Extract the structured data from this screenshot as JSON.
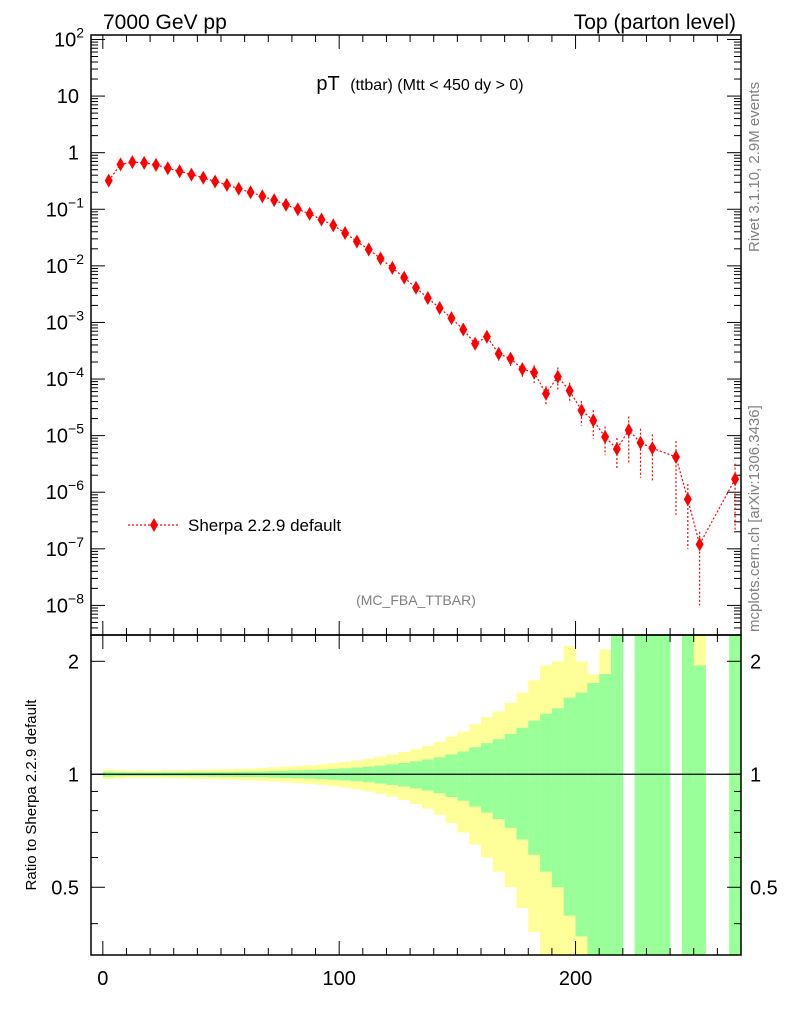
{
  "header": {
    "left": "7000 GeV pp",
    "right": "Top (parton level)"
  },
  "side": {
    "rivet": "Rivet 3.1.10,  2.9M events",
    "mcplots": "mcplots.cern.ch [arXiv:1306.3436]"
  },
  "chart_data": [
    {
      "type": "scatter",
      "title_main": "pT",
      "title_sub": "(ttbar) (Mtt < 450 dy > 0)",
      "analysis": "(MC_FBA_TTBAR)",
      "yscale": "log",
      "xlim": [
        -5,
        270
      ],
      "ylim": [
        3e-09,
        120
      ],
      "yticks": [
        {
          "v": 1e-08,
          "base": "10",
          "exp": "−8"
        },
        {
          "v": 1e-07,
          "base": "10",
          "exp": "−7"
        },
        {
          "v": 1e-06,
          "base": "10",
          "exp": "−6"
        },
        {
          "v": 1e-05,
          "base": "10",
          "exp": "−5"
        },
        {
          "v": 0.0001,
          "base": "10",
          "exp": "−4"
        },
        {
          "v": 0.001,
          "base": "10",
          "exp": "−3"
        },
        {
          "v": 0.01,
          "base": "10",
          "exp": "−2"
        },
        {
          "v": 0.1,
          "base": "10",
          "exp": "−1"
        },
        {
          "v": 1,
          "base": "1",
          "exp": ""
        },
        {
          "v": 10,
          "base": "10",
          "exp": ""
        },
        {
          "v": 100,
          "base": "10",
          "exp": "2"
        }
      ],
      "legend": {
        "label": "Sherpa 2.2.9 default",
        "placement": "bottom-left"
      },
      "series": [
        {
          "name": "Sherpa 2.2.9 default",
          "color": "#ff0000",
          "x": [
            2.5,
            7.5,
            12.5,
            17.5,
            22.5,
            27.5,
            32.5,
            37.5,
            42.5,
            47.5,
            52.5,
            57.5,
            62.5,
            67.5,
            72.5,
            77.5,
            82.5,
            87.5,
            92.5,
            97.5,
            102.5,
            107.5,
            112.5,
            117.5,
            122.5,
            127.5,
            132.5,
            137.5,
            142.5,
            147.5,
            152.5,
            157.5,
            162.5,
            167.5,
            172.5,
            177.5,
            182.5,
            187.5,
            192.5,
            197.5,
            202.5,
            207.5,
            212.5,
            217.5,
            222.5,
            227.5,
            232.5,
            242.5,
            247.5,
            252.5,
            267.5
          ],
          "y": [
            0.32,
            0.62,
            0.68,
            0.66,
            0.61,
            0.53,
            0.47,
            0.41,
            0.36,
            0.31,
            0.27,
            0.23,
            0.2,
            0.17,
            0.145,
            0.12,
            0.1,
            0.083,
            0.066,
            0.052,
            0.038,
            0.027,
            0.0195,
            0.0135,
            0.0092,
            0.0062,
            0.0041,
            0.0027,
            0.0018,
            0.00119,
            0.00075,
            0.00042,
            0.00056,
            0.00028,
            0.00023,
            0.00015,
            0.00013,
            5.5e-05,
            0.00011,
            6.2e-05,
            2.8e-05,
            1.85e-05,
            9.5e-06,
            5.8e-06,
            1.25e-05,
            7.5e-06,
            6e-06,
            4.2e-06,
            7.5e-07,
            1.2e-07,
            1.7e-06
          ],
          "err_lo": [
            0.3,
            0.59,
            0.655,
            0.635,
            0.585,
            0.51,
            0.45,
            0.39,
            0.345,
            0.295,
            0.257,
            0.218,
            0.19,
            0.161,
            0.137,
            0.113,
            0.094,
            0.078,
            0.061,
            0.048,
            0.035,
            0.0248,
            0.0177,
            0.0121,
            0.0081,
            0.0054,
            0.0035,
            0.0023,
            0.00152,
            0.001,
            0.00061,
            0.00034,
            0.00044,
            0.00021,
            0.00017,
            0.00011,
            8.5e-05,
            3.5e-05,
            6e-05,
            3.8e-05,
            1.5e-05,
            8.8e-06,
            4.5e-06,
            2.5e-06,
            3.2e-06,
            1.8e-06,
            1.5e-06,
            4e-07,
            1e-07,
            1e-08,
            2e-07
          ],
          "err_hi": [
            0.34,
            0.65,
            0.705,
            0.685,
            0.635,
            0.55,
            0.49,
            0.43,
            0.375,
            0.325,
            0.283,
            0.242,
            0.21,
            0.179,
            0.153,
            0.127,
            0.106,
            0.088,
            0.071,
            0.056,
            0.041,
            0.0292,
            0.0213,
            0.0149,
            0.0103,
            0.007,
            0.0047,
            0.0031,
            0.00208,
            0.00138,
            0.00089,
            0.0005,
            0.00068,
            0.00035,
            0.00029,
            0.00019,
            0.000175,
            7.5e-05,
            0.00016,
            8.6e-05,
            4.1e-05,
            2.82e-05,
            1.45e-05,
            9.1e-06,
            2.18e-05,
            1.32e-05,
            1.05e-05,
            8e-06,
            1.4e-06,
            2e-07,
            3.2e-06
          ]
        }
      ]
    },
    {
      "type": "area",
      "ylabel": "Ratio to Sherpa 2.2.9 default",
      "yscale": "log",
      "xlim": [
        -5,
        270
      ],
      "ylim": [
        0.33,
        2.35
      ],
      "yticks": [
        0.5,
        1,
        2
      ],
      "xticks": [
        0,
        100,
        200
      ],
      "bin_edges": [
        0,
        5,
        10,
        15,
        20,
        25,
        30,
        35,
        40,
        45,
        50,
        55,
        60,
        65,
        70,
        75,
        80,
        85,
        90,
        95,
        100,
        105,
        110,
        115,
        120,
        125,
        130,
        135,
        140,
        145,
        150,
        155,
        160,
        165,
        170,
        175,
        180,
        185,
        190,
        195,
        200,
        205,
        210,
        215,
        220,
        225,
        230,
        240,
        245,
        250,
        255,
        265,
        270
      ],
      "green_hi": [
        1.015,
        1.012,
        1.011,
        1.011,
        1.011,
        1.012,
        1.012,
        1.013,
        1.013,
        1.014,
        1.015,
        1.016,
        1.017,
        1.018,
        1.02,
        1.022,
        1.024,
        1.026,
        1.029,
        1.033,
        1.037,
        1.042,
        1.048,
        1.055,
        1.063,
        1.072,
        1.083,
        1.095,
        1.11,
        1.13,
        1.15,
        1.18,
        1.21,
        1.24,
        1.28,
        1.33,
        1.39,
        1.45,
        1.5,
        1.6,
        1.65,
        1.75,
        1.85,
        2.35,
        0,
        2.35,
        2.35,
        0,
        2.35,
        1.95,
        0,
        2.35,
        2.0
      ],
      "green_lo": [
        0.985,
        0.988,
        0.989,
        0.989,
        0.989,
        0.988,
        0.988,
        0.987,
        0.987,
        0.986,
        0.985,
        0.984,
        0.983,
        0.982,
        0.98,
        0.978,
        0.976,
        0.974,
        0.971,
        0.967,
        0.963,
        0.958,
        0.952,
        0.945,
        0.937,
        0.928,
        0.917,
        0.905,
        0.89,
        0.87,
        0.85,
        0.82,
        0.79,
        0.76,
        0.72,
        0.67,
        0.61,
        0.55,
        0.5,
        0.42,
        0.37,
        0.33,
        0.33,
        0.33,
        0,
        0.33,
        0.33,
        0,
        0.33,
        0.33,
        0,
        0.33,
        0.33
      ],
      "yellow_hi": [
        1.03,
        1.025,
        1.022,
        1.022,
        1.022,
        1.024,
        1.025,
        1.027,
        1.028,
        1.03,
        1.032,
        1.034,
        1.036,
        1.04,
        1.044,
        1.048,
        1.052,
        1.057,
        1.063,
        1.07,
        1.078,
        1.088,
        1.1,
        1.113,
        1.128,
        1.146,
        1.167,
        1.19,
        1.22,
        1.26,
        1.3,
        1.36,
        1.42,
        1.47,
        1.55,
        1.65,
        1.78,
        1.95,
        2.0,
        2.2,
        2.0,
        1.85,
        2.15,
        2.35,
        0,
        2.35,
        2.35,
        0,
        2.35,
        2.35,
        0,
        2.35,
        2.35
      ],
      "yellow_lo": [
        0.97,
        0.975,
        0.978,
        0.978,
        0.978,
        0.976,
        0.975,
        0.973,
        0.972,
        0.97,
        0.968,
        0.966,
        0.964,
        0.96,
        0.956,
        0.952,
        0.948,
        0.943,
        0.937,
        0.93,
        0.922,
        0.912,
        0.9,
        0.887,
        0.872,
        0.854,
        0.833,
        0.81,
        0.78,
        0.74,
        0.7,
        0.65,
        0.6,
        0.55,
        0.5,
        0.44,
        0.38,
        0.33,
        0.33,
        0.33,
        0.33,
        0.33,
        0.33,
        0.33,
        0,
        0.33,
        0.33,
        0,
        0.33,
        0.33,
        0,
        0.33,
        0.33
      ],
      "colors": {
        "green": "#99ff99",
        "yellow": "#ffff99"
      }
    }
  ]
}
